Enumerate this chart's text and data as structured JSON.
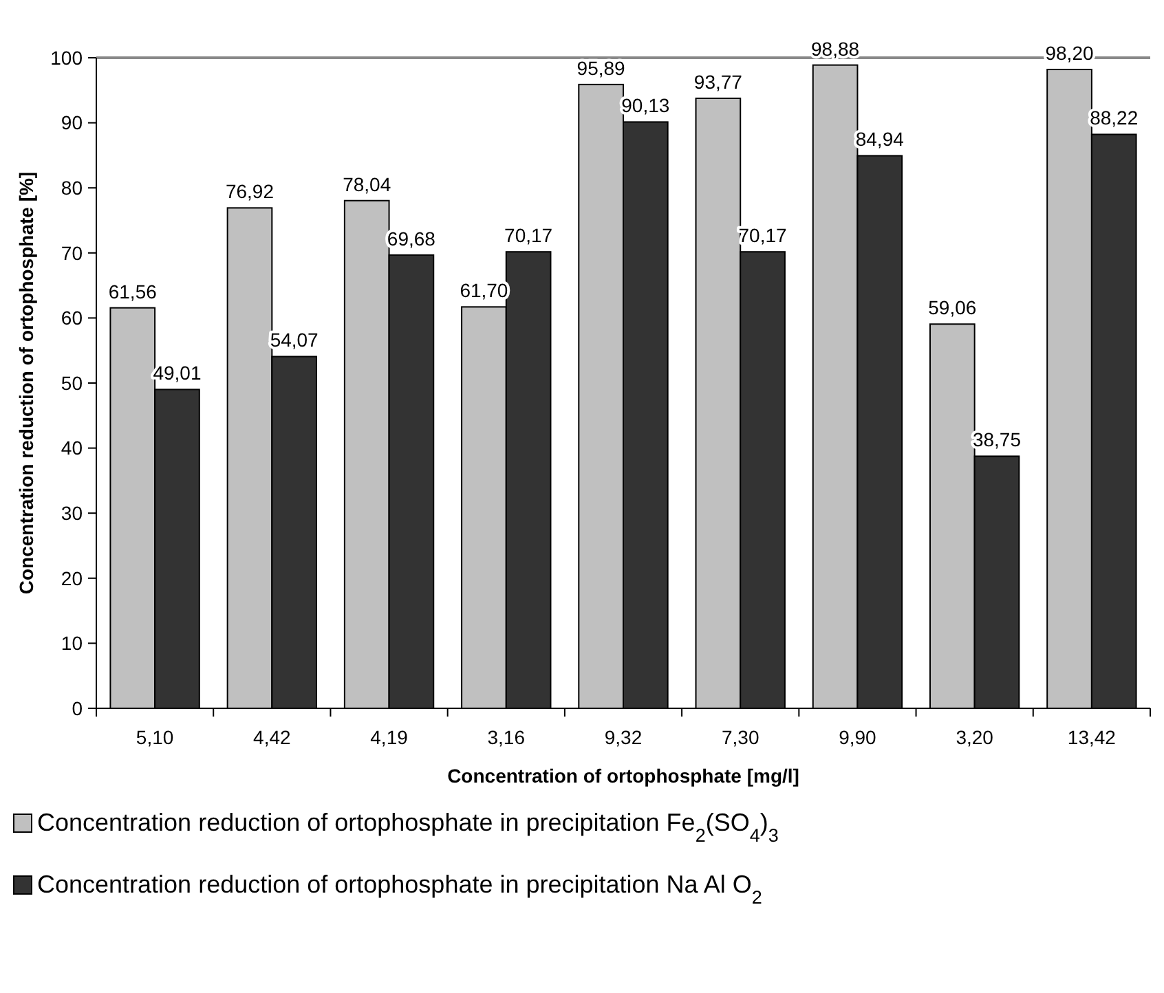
{
  "chart_data": {
    "type": "bar",
    "xlabel": "Concentration of ortophosphate [mg/l]",
    "ylabel": "Concentration reduction of ortophosphate [%]",
    "categories": [
      "5,10",
      "4,42",
      "4,19",
      "3,16",
      "9,32",
      "7,30",
      "9,90",
      "3,20",
      "13,42"
    ],
    "series": [
      {
        "name": "Concentration reduction of ortophosphate in precipitation Fe$_{2}$(SO$_{4}$)$_{3}$",
        "color": "#c0c0c0",
        "values": [
          61.56,
          76.92,
          78.04,
          61.7,
          95.89,
          93.77,
          98.88,
          59.06,
          98.2
        ],
        "value_labels": [
          "61,56",
          "76,92",
          "78,04",
          "61,70",
          "95,89",
          "93,77",
          "98,88",
          "59,06",
          "98,20"
        ]
      },
      {
        "name": "Concentration reduction of ortophosphate in precipitation Na Al O$_{2}$",
        "color": "#333333",
        "values": [
          49.01,
          54.07,
          69.68,
          70.17,
          90.13,
          70.17,
          84.94,
          38.75,
          88.22
        ],
        "value_labels": [
          "49,01",
          "54,07",
          "69,68",
          "70,17",
          "90,13",
          "70,17",
          "84,94",
          "38,75",
          "88,22"
        ]
      }
    ],
    "ylim": [
      0,
      100
    ],
    "yticks": [
      0,
      10,
      20,
      30,
      40,
      50,
      60,
      70,
      80,
      90,
      100
    ],
    "grid": false,
    "legend": "bottom"
  }
}
